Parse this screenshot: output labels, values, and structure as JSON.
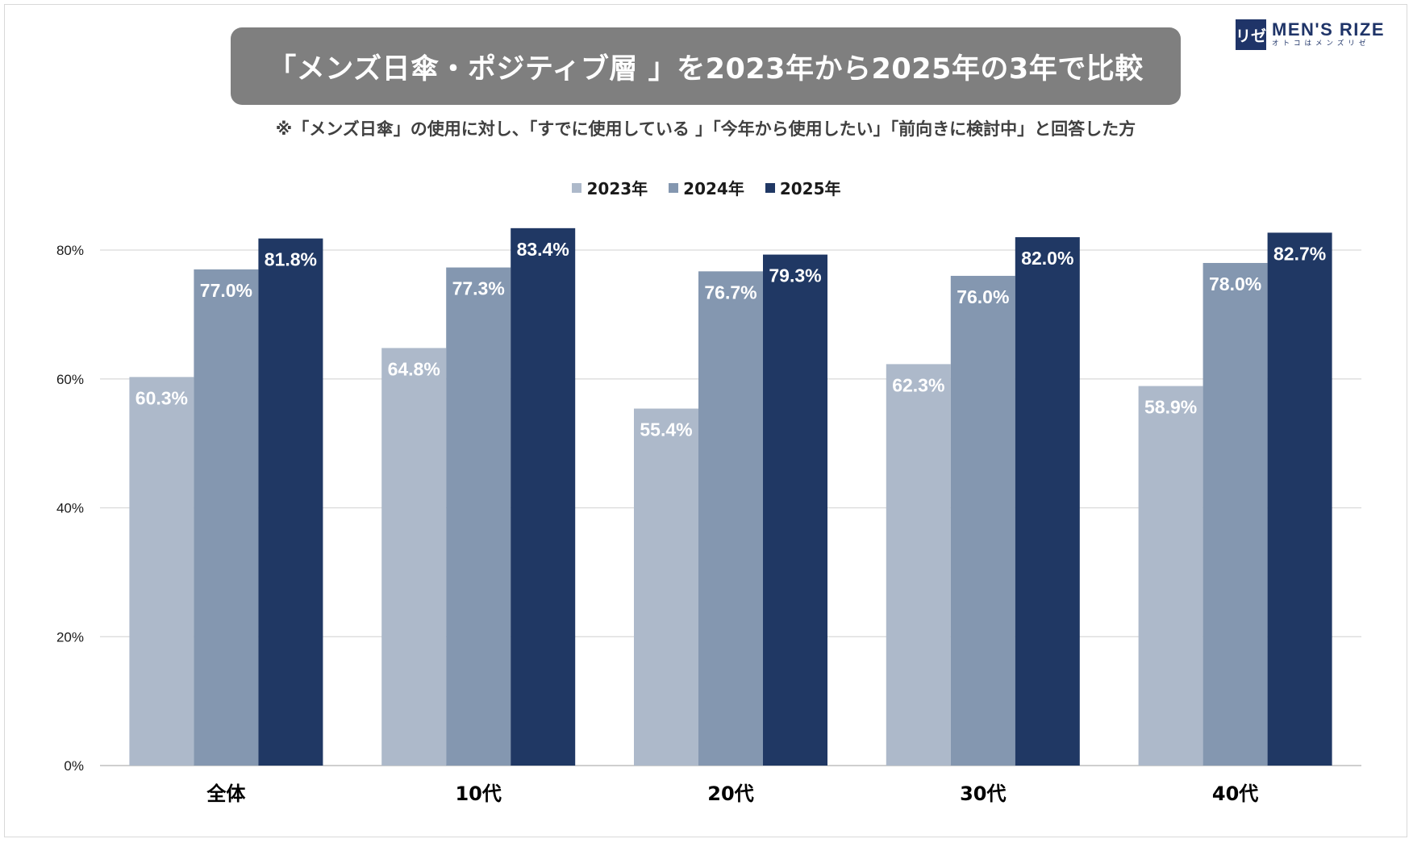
{
  "header": {
    "title": "「メンズ日傘・ポジティブ層 」を2023年から2025年の3年で比較",
    "subtitle": "※「メンズ日傘」の使用に対し、「すでに使用している 」「今年から使用したい」「前向きに検討中」と回答した方"
  },
  "logo": {
    "mark": "リゼ",
    "name": "MEN'S RIZE",
    "tagline": "オトコはメンズリゼ"
  },
  "colors": {
    "title_bg": "#7f7f7f",
    "brand": "#1f3468",
    "series_2023": "#adb9ca",
    "series_2024": "#8497b0",
    "series_2025": "#203864"
  },
  "chart_data": {
    "type": "bar",
    "categories": [
      "全体",
      "10代",
      "20代",
      "30代",
      "40代"
    ],
    "series": [
      {
        "name": "2023年",
        "values": [
          60.3,
          64.8,
          55.4,
          62.3,
          58.9
        ],
        "labels": [
          "60.3%",
          "64.8%",
          "55.4%",
          "62.3%",
          "58.9%"
        ],
        "color": "#adb9ca"
      },
      {
        "name": "2024年",
        "values": [
          77.0,
          77.3,
          76.7,
          76.0,
          78.0
        ],
        "labels": [
          "77.0%",
          "77.3%",
          "76.7%",
          "76.0%",
          "78.0%"
        ],
        "color": "#8497b0"
      },
      {
        "name": "2025年",
        "values": [
          81.8,
          83.4,
          79.3,
          82.0,
          82.7
        ],
        "labels": [
          "81.8%",
          "83.4%",
          "79.3%",
          "82.0%",
          "82.7%"
        ],
        "color": "#203864"
      }
    ],
    "yticks": [
      0,
      20,
      40,
      60,
      80
    ],
    "ytick_labels": [
      "0%",
      "20%",
      "40%",
      "60%",
      "80%"
    ],
    "ylim": [
      0,
      80
    ],
    "grid": true,
    "legend_position": "top-center"
  }
}
